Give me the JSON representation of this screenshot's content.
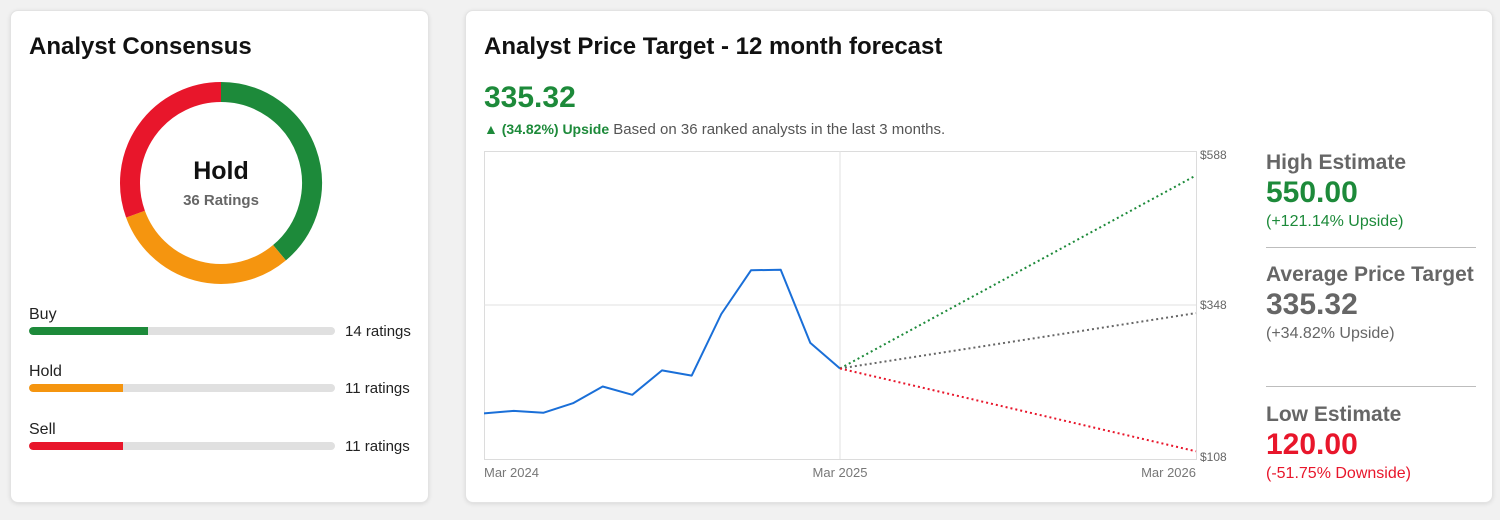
{
  "consensus": {
    "title": "Analyst Consensus",
    "rating": "Hold",
    "ratings_total": "36 Ratings",
    "breakdown": [
      {
        "label": "Buy",
        "count": 14,
        "count_text": "14 ratings",
        "color": "#1d8a3a"
      },
      {
        "label": "Hold",
        "count": 11,
        "count_text": "11 ratings",
        "color": "#f5950f"
      },
      {
        "label": "Sell",
        "count": 11,
        "count_text": "11 ratings",
        "color": "#e8162b"
      }
    ]
  },
  "price_target": {
    "title": "Analyst Price Target - 12 month forecast",
    "average": "335.32",
    "upside_badge": "▲ (34.82%) Upside",
    "upside_note": "Based on 36 ranked analysts in the last 3 months.",
    "estimates": {
      "high": {
        "title": "High Estimate",
        "value": "550.00",
        "change": "(+121.14% Upside)",
        "color": "#1d8a3a"
      },
      "average": {
        "title": "Average Price Target",
        "value": "335.32",
        "change": "(+34.82% Upside)",
        "color": "#666666"
      },
      "low": {
        "title": "Low Estimate",
        "value": "120.00",
        "change": "(-51.75% Downside)",
        "color": "#e8162b"
      }
    }
  },
  "chart_data": {
    "type": "line",
    "x_ticks": [
      "Mar 2024",
      "Mar 2025",
      "Mar 2026"
    ],
    "y_ticks": [
      "$588",
      "$348",
      "$108"
    ],
    "ylim": [
      108,
      588
    ],
    "x_range": [
      "2024-03",
      "2026-03"
    ],
    "series": [
      {
        "color": "#1a6fd8",
        "style": "solid",
        "points": [
          {
            "x": "2024-03",
            "y": 179
          },
          {
            "x": "2024-04",
            "y": 183
          },
          {
            "x": "2024-05",
            "y": 180
          },
          {
            "x": "2024-06",
            "y": 195
          },
          {
            "x": "2024-07",
            "y": 221
          },
          {
            "x": "2024-08",
            "y": 208
          },
          {
            "x": "2024-09",
            "y": 246
          },
          {
            "x": "2024-10",
            "y": 238
          },
          {
            "x": "2024-11",
            "y": 334
          },
          {
            "x": "2024-12",
            "y": 402
          },
          {
            "x": "2025-01",
            "y": 403
          },
          {
            "x": "2025-02",
            "y": 289
          },
          {
            "x": "2025-03",
            "y": 249
          }
        ]
      },
      {
        "color": "#1d8a3a",
        "style": "dotted",
        "points": [
          {
            "x": "2025-03",
            "y": 249
          },
          {
            "x": "2026-03",
            "y": 550
          }
        ]
      },
      {
        "color": "#666666",
        "style": "dotted",
        "points": [
          {
            "x": "2025-03",
            "y": 249
          },
          {
            "x": "2026-03",
            "y": 335.32
          }
        ]
      },
      {
        "color": "#e8162b",
        "style": "dotted",
        "points": [
          {
            "x": "2025-03",
            "y": 249
          },
          {
            "x": "2026-03",
            "y": 120
          }
        ]
      }
    ],
    "grid": true
  }
}
